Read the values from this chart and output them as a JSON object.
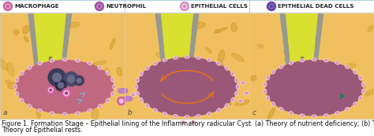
{
  "caption_line1": "Figure 1. Formation Stage – Epithelial lining of the Inflammatory radicular Cyst. (a) Theory of nutrient deficiency; (b) Theory of abscess cavity; (c)",
  "caption_line2": "Theory of Epithelial rests.",
  "legend_labels": [
    "MACROPHAGE",
    "NEUTROPHIL",
    "EPITHELIAL CELLS",
    "EPITHELIAL DEAD CELLS"
  ],
  "panel_labels": [
    "a",
    "b",
    "c"
  ],
  "tissue_bg": "#f0c060",
  "tissue_texture": "#d4a030",
  "cyst_fill_a": "#c06880",
  "cyst_fill_bc": "#9a5878",
  "cell_border_color": "#f0c8d8",
  "cell_inner_color": "#d898b8",
  "tooth_yellow": "#d8e030",
  "tooth_gray": "#909890",
  "tooth_dark_gray": "#707870",
  "legend_bg": "#ffffff",
  "figure_bg": "#ffffff",
  "caption_fontsize": 5.8,
  "legend_fontsize": 6.8
}
